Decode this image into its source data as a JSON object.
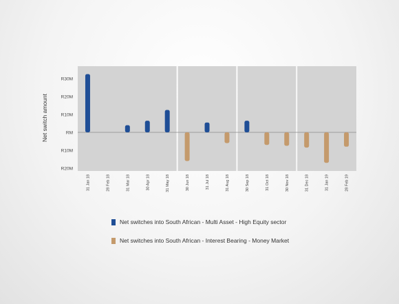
{
  "chart_data": {
    "type": "bar",
    "ylabel": "Net switch amount",
    "ylim": [
      -20,
      35
    ],
    "yticks": [
      {
        "value": 30,
        "label": "R30M"
      },
      {
        "value": 20,
        "label": "R20M"
      },
      {
        "value": 10,
        "label": "R10M"
      },
      {
        "value": 0,
        "label": "RM"
      },
      {
        "value": -10,
        "label": "R10M"
      },
      {
        "value": -20,
        "label": "R20M"
      }
    ],
    "categories": [
      "31 Jan 18",
      "28 Feb 18",
      "31 Mar 18",
      "30 Apr 18",
      "31 May 18",
      "30 Jun 18",
      "31 Jul 18",
      "31 Aug 18",
      "30 Sep 18",
      "31 Oct 18",
      "30 Nov 18",
      "31 Dec 18",
      "31 Jan 19",
      "28 Feb 19"
    ],
    "panel_breaks_after": [
      "31 May 18",
      "31 Aug 18",
      "30 Nov 18"
    ],
    "series": [
      {
        "name": "Net switches into South African - Multi Asset - High Equity sector",
        "color": "#1f4e96",
        "values": [
          32.5,
          0,
          4,
          6.5,
          12.5,
          0,
          5.5,
          0,
          6.5,
          0,
          0,
          0,
          0,
          0
        ]
      },
      {
        "name": "Net switches into South African - Interest Bearing - Money Market",
        "color": "#c49a6c",
        "values": [
          0,
          0,
          0,
          0,
          0,
          -16,
          0,
          -6,
          0,
          -7,
          -7.5,
          -8.5,
          -17,
          -8
        ]
      }
    ],
    "grid": false,
    "legend_position": "bottom"
  }
}
